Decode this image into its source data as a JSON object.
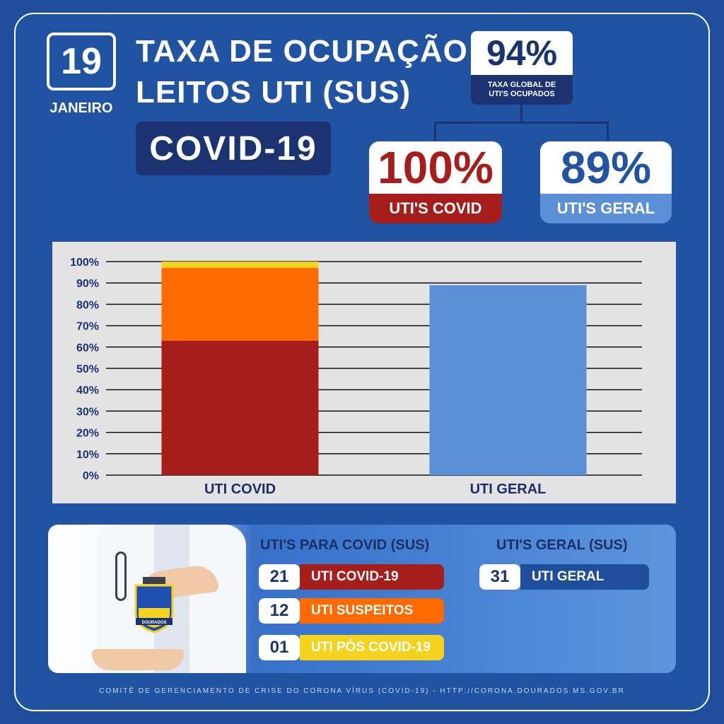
{
  "header": {
    "day": "19",
    "month": "JANEIRO",
    "title_line1": "TAXA DE OCUPAÇÃO",
    "title_line2": "LEITOS UTI (SUS)",
    "tag": "COVID-19"
  },
  "global_rate": {
    "value": "94%",
    "label_line1": "TAXA GLOBAL DE",
    "label_line2": "UTI'S OCUPADOS"
  },
  "cards": [
    {
      "value": "100%",
      "label": "UTI'S COVID",
      "color": "#a61e1b"
    },
    {
      "value": "89%",
      "label": "UTI'S GERAL",
      "color": "#5b8fd6"
    }
  ],
  "chart_data": {
    "type": "bar",
    "stacked": true,
    "categories": [
      "UTI COVID",
      "UTI GERAL"
    ],
    "series": [
      {
        "name": "UTI COVID-19",
        "values": [
          63,
          0
        ],
        "color": "#a61e1b"
      },
      {
        "name": "UTI SUSPEITOS",
        "values": [
          34,
          0
        ],
        "color": "#ff6a00"
      },
      {
        "name": "UTI PÓS COVID-19",
        "values": [
          3,
          0
        ],
        "color": "#f5d21e"
      },
      {
        "name": "UTI GERAL",
        "values": [
          0,
          89
        ],
        "color": "#5b8fd6"
      }
    ],
    "y_ticks": [
      "0%",
      "10%",
      "20%",
      "30%",
      "40%",
      "50%",
      "60%",
      "70%",
      "80%",
      "90%",
      "100%"
    ],
    "ylim": [
      0,
      100
    ],
    "grid": true
  },
  "covid_section": {
    "title": "UTI'S PARA COVID (SUS)",
    "rows": [
      {
        "count": "21",
        "label": "UTI COVID-19",
        "color": "#a61e1b"
      },
      {
        "count": "12",
        "label": "UTI SUSPEITOS",
        "color": "#ff6a00"
      },
      {
        "count": "01",
        "label": "UTI PÓS COVID-19",
        "color": "#f5d21e"
      }
    ]
  },
  "geral_section": {
    "title": "UTI'S GERAL (SUS)",
    "rows": [
      {
        "count": "31",
        "label": "UTI GERAL",
        "color": "#1f4f9c"
      }
    ]
  },
  "crest": {
    "name": "DOURADOS"
  },
  "footer": "COMITÊ DE GERENCIAMENTO DE CRISE DO CORONA VÍRUS (COVID-19) - HTTP://CORONA.DOURADOS.MS.GOV.BR"
}
